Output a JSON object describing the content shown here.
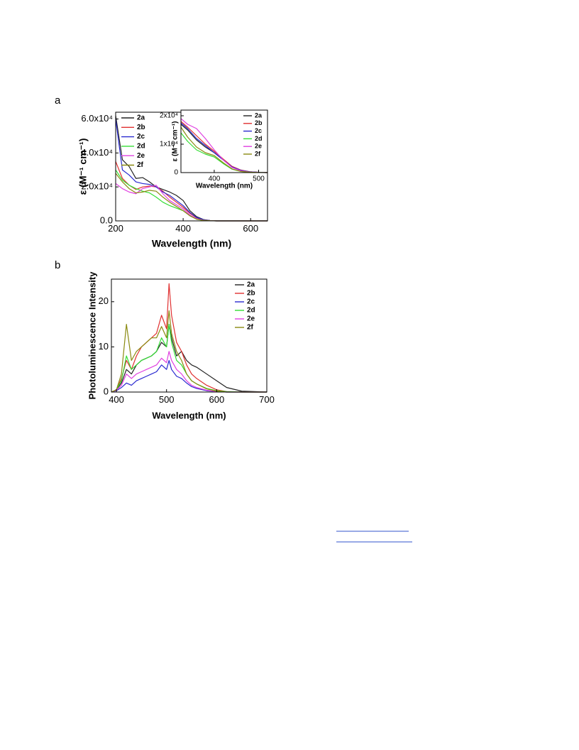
{
  "chart_data": [
    {
      "type": "line",
      "panel_label": "a",
      "x_label": "Wavelength (nm)",
      "y_label": "ε (M⁻¹ cm⁻¹)",
      "xlim": [
        200,
        650
      ],
      "ylim": [
        0,
        64000
      ],
      "xticks": [
        200,
        400,
        600
      ],
      "yticks": [
        {
          "value": 0,
          "label": "0.0"
        },
        {
          "value": 20000,
          "label": "2.0x10⁴"
        },
        {
          "value": 40000,
          "label": "4.0x10⁴"
        },
        {
          "value": 60000,
          "label": "6.0x10⁴"
        }
      ],
      "legend": "upper left",
      "x": [
        200,
        220,
        240,
        260,
        280,
        300,
        320,
        340,
        360,
        380,
        400,
        420,
        440,
        460,
        480,
        500,
        550,
        600,
        650
      ],
      "series": [
        {
          "name": "2a",
          "color": "#222222",
          "values": [
            62000,
            36000,
            32000,
            25000,
            25500,
            23000,
            20000,
            18500,
            17000,
            15000,
            12000,
            6000,
            2500,
            800,
            200,
            0,
            0,
            0,
            0
          ]
        },
        {
          "name": "2b",
          "color": "#e03030",
          "values": [
            35000,
            25000,
            21000,
            18500,
            20000,
            20500,
            20000,
            17500,
            14000,
            11000,
            8000,
            4500,
            1800,
            600,
            150,
            0,
            0,
            0,
            0
          ]
        },
        {
          "name": "2c",
          "color": "#2a2ad0",
          "values": [
            60000,
            30000,
            27000,
            23000,
            22000,
            21500,
            20000,
            17000,
            15000,
            12000,
            9000,
            5000,
            2000,
            700,
            150,
            0,
            0,
            0,
            0
          ]
        },
        {
          "name": "2d",
          "color": "#33dd33",
          "values": [
            30000,
            24000,
            21000,
            19000,
            17500,
            16500,
            14000,
            11000,
            9000,
            7500,
            6000,
            3000,
            1000,
            300,
            100,
            0,
            0,
            0,
            0
          ]
        },
        {
          "name": "2e",
          "color": "#e040e0",
          "values": [
            22000,
            19000,
            17000,
            16000,
            19000,
            20000,
            21000,
            16000,
            12000,
            9500,
            7000,
            3500,
            1200,
            400,
            100,
            0,
            0,
            0,
            0
          ]
        },
        {
          "name": "2f",
          "color": "#8a8a10",
          "values": [
            28000,
            23000,
            19000,
            16500,
            17000,
            18000,
            17500,
            14000,
            11000,
            8500,
            6000,
            3000,
            1000,
            300,
            100,
            0,
            0,
            0,
            0
          ]
        }
      ]
    },
    {
      "type": "line",
      "x_label": "Wavelength (nm)",
      "y_label": "ε (M⁻¹ cm⁻¹)",
      "xlim": [
        325,
        520
      ],
      "ylim": [
        0,
        22000
      ],
      "xticks": [
        400,
        500
      ],
      "yticks": [
        0,
        {
          "value": 10000,
          "label": "1x10⁴"
        },
        {
          "value": 20000,
          "label": "2x10⁴"
        }
      ],
      "legend": "upper right",
      "x": [
        325,
        340,
        360,
        380,
        400,
        420,
        440,
        460,
        480,
        500,
        520
      ],
      "series": [
        {
          "name": "2a",
          "color": "#222222",
          "values": [
            17000,
            15000,
            11500,
            9000,
            7000,
            4500,
            2000,
            800,
            300,
            100,
            0
          ]
        },
        {
          "name": "2b",
          "color": "#e03030",
          "values": [
            18000,
            16000,
            13000,
            10000,
            7500,
            4800,
            2200,
            900,
            300,
            100,
            0
          ]
        },
        {
          "name": "2c",
          "color": "#2a2ad0",
          "values": [
            17500,
            15500,
            12000,
            9500,
            7000,
            4500,
            2000,
            800,
            300,
            100,
            0
          ]
        },
        {
          "name": "2d",
          "color": "#33dd33",
          "values": [
            14000,
            11000,
            8000,
            6500,
            5500,
            3200,
            1200,
            400,
            150,
            50,
            0
          ]
        },
        {
          "name": "2e",
          "color": "#e040e0",
          "values": [
            19000,
            17000,
            15500,
            12000,
            8000,
            4500,
            1800,
            600,
            200,
            50,
            0
          ]
        },
        {
          "name": "2f",
          "color": "#8a8a10",
          "values": [
            16000,
            12500,
            9000,
            7000,
            6000,
            3500,
            1300,
            400,
            150,
            50,
            0
          ]
        }
      ]
    },
    {
      "type": "line",
      "panel_label": "b",
      "x_label": "Wavelength (nm)",
      "y_label": "Photoluminescence Intensity",
      "xlim": [
        390,
        700
      ],
      "ylim": [
        0,
        25
      ],
      "xticks": [
        400,
        500,
        600,
        700
      ],
      "yticks": [
        0,
        10,
        20
      ],
      "legend": "upper right",
      "x": [
        390,
        400,
        410,
        420,
        430,
        440,
        450,
        460,
        470,
        480,
        490,
        500,
        505,
        510,
        520,
        530,
        540,
        550,
        560,
        580,
        600,
        620,
        650,
        700
      ],
      "series": [
        {
          "name": "2a",
          "color": "#222222",
          "values": [
            0,
            0.5,
            2,
            5,
            4,
            6,
            7,
            7.5,
            8,
            9,
            11,
            10,
            15,
            12,
            8,
            9,
            7,
            6,
            5.5,
            4,
            2.5,
            1,
            0.2,
            0
          ]
        },
        {
          "name": "2b",
          "color": "#e03030",
          "values": [
            0,
            0.5,
            3,
            7,
            5,
            8,
            10,
            11,
            12,
            13,
            17,
            14,
            24,
            17,
            11,
            9,
            6,
            4,
            3,
            1.5,
            0.5,
            0.1,
            0,
            0
          ]
        },
        {
          "name": "2c",
          "color": "#2a2ad0",
          "values": [
            0,
            0.3,
            1,
            2,
            1.5,
            2.5,
            3,
            3.5,
            4,
            4.5,
            6,
            5,
            7,
            5,
            3.5,
            3,
            2,
            1.2,
            0.8,
            0.3,
            0.1,
            0,
            0,
            0
          ]
        },
        {
          "name": "2d",
          "color": "#33dd33",
          "values": [
            0,
            0.5,
            2.5,
            8,
            5,
            6,
            7,
            7.5,
            8,
            9,
            12,
            10,
            15,
            11,
            7,
            6,
            4,
            2.5,
            1.8,
            0.8,
            0.3,
            0.1,
            0,
            0
          ]
        },
        {
          "name": "2e",
          "color": "#e040e0",
          "values": [
            0,
            0.4,
            1.5,
            4,
            3,
            4,
            4.5,
            5,
            5.5,
            6,
            7.5,
            6.5,
            9,
            7,
            5,
            4,
            2.5,
            1.5,
            1,
            0.4,
            0.1,
            0,
            0,
            0
          ]
        },
        {
          "name": "2f",
          "color": "#8a8a10",
          "values": [
            0,
            0.5,
            4,
            15,
            7,
            9,
            10,
            11,
            12,
            12,
            14.5,
            12,
            18,
            13,
            9,
            7,
            4,
            2.5,
            1.8,
            0.7,
            0.2,
            0,
            0,
            0
          ]
        }
      ]
    }
  ]
}
